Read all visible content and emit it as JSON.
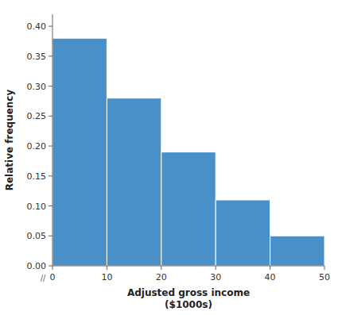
{
  "chart_data": {
    "type": "histogram",
    "bins": [
      0,
      10,
      20,
      30,
      40,
      50
    ],
    "values": [
      0.38,
      0.28,
      0.19,
      0.11,
      0.05
    ],
    "xlim": [
      0,
      50
    ],
    "xticks": [
      0,
      10,
      20,
      30,
      40,
      50
    ],
    "ylim": [
      0,
      0.42
    ],
    "yticks": [
      {
        "value": 0.0,
        "label": "0.00"
      },
      0.05,
      {
        "value": 0.1,
        "label": "0.10"
      },
      0.15,
      {
        "value": 0.2,
        "label": "0.20"
      },
      0.25,
      {
        "value": 0.3,
        "label": "0.30"
      },
      0.35,
      {
        "value": 0.4,
        "label": "0.40"
      }
    ],
    "xlabel": "Adjusted gross income\n($1000s)",
    "ylabel": "Relative frequency",
    "annotations": [
      {
        "text": "//"
      }
    ],
    "grid": false
  }
}
